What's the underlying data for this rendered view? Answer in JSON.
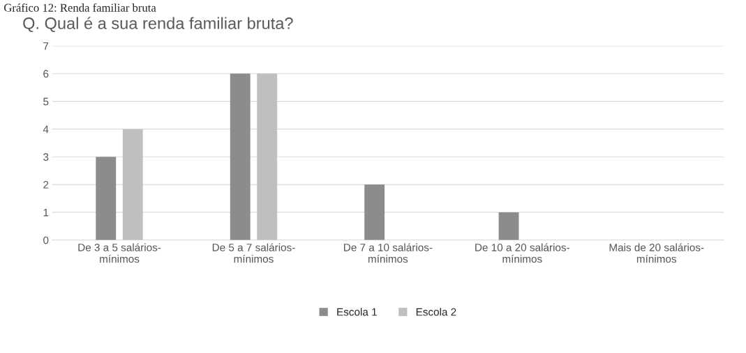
{
  "chart_data": {
    "type": "bar",
    "title": "Q. Qual é a sua renda familiar bruta?",
    "annotations": [
      "Gráfico 12: Renda familiar bruta"
    ],
    "categories": [
      "De 3 a 5 salários-\nmínimos",
      "De 5 a 7 salários-\nmínimos",
      "De 7 a 10 salários-\nmínimos",
      "De 10 a 20 salários-\nmínimos",
      "Mais de 20 salários-\nmínimos"
    ],
    "series": [
      {
        "name": "Escola 1",
        "color": "#8c8c8c",
        "values": [
          3,
          6,
          2,
          1,
          0
        ]
      },
      {
        "name": "Escola 2",
        "color": "#bfbfbf",
        "values": [
          4,
          6,
          0,
          0,
          0
        ]
      }
    ],
    "ylim": [
      0,
      7
    ],
    "yticks": [
      0,
      1,
      2,
      3,
      4,
      5,
      6,
      7
    ],
    "grid": "y",
    "legend": "bottom"
  }
}
